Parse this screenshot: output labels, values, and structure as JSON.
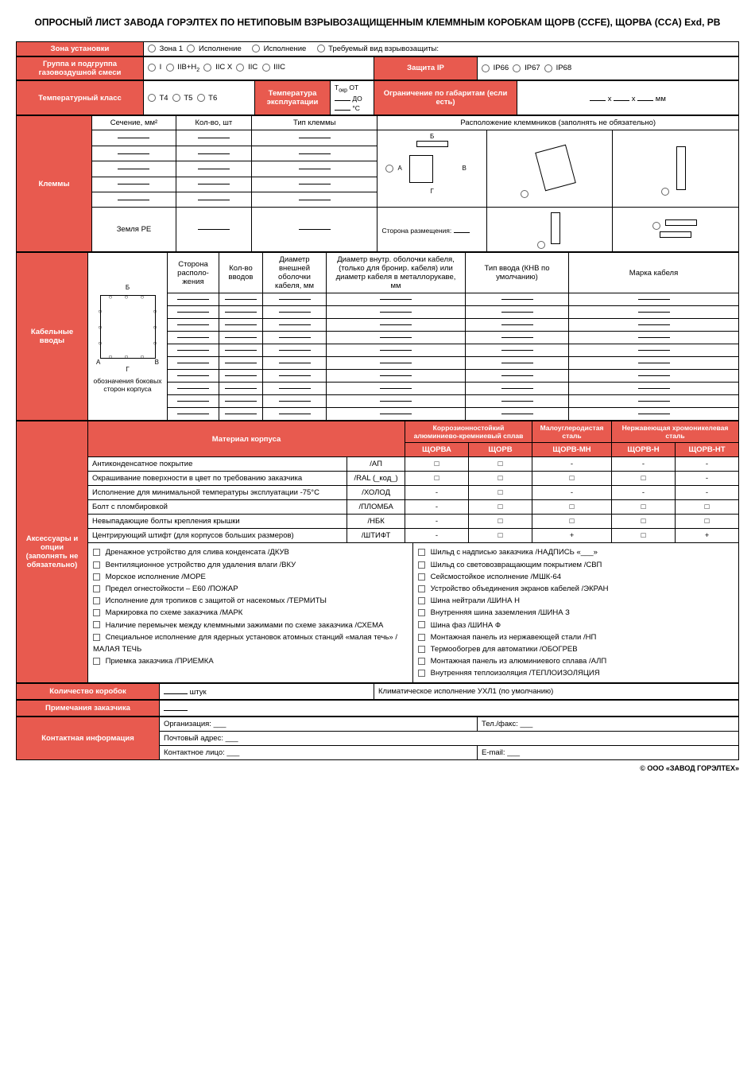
{
  "colors": {
    "header_bg": "#e85a4f",
    "header_fg": "#ffffff",
    "border": "#000000"
  },
  "title": "ОПРОСНЫЙ ЛИСТ ЗАВОДА ГОРЭЛТЕХ ПО НЕТИПОВЫМ ВЗРЫВОЗАЩИЩЕННЫМ КЛЕММНЫМ КОРОБКАМ ЩОРВ (CCFE), ЩОРВА (CCA) Exd, РВ",
  "row1": {
    "zone_label": "Зона установки",
    "opts": [
      "Зона 1",
      "Исполнение",
      "Исполнение",
      "Требуемый вид взрывозащиты:"
    ]
  },
  "row2": {
    "group_label": "Группа и подгруппа газовоздушной смеси",
    "opts": [
      "I",
      "IIB+H₂",
      "IIC X",
      "IIC",
      "IIIC"
    ],
    "ip_label": "Защита IP",
    "ip_opts": [
      "IP66",
      "IP67",
      "IP68"
    ]
  },
  "row3": {
    "temp_class_label": "Температурный класс",
    "temp_opts": [
      "T4",
      "T5",
      "T6"
    ],
    "temp_oper_label": "Температура эксплуатации",
    "temp_range": "Tокр ОТ ___ ДО ___ °C",
    "dim_label": "Ограничение по габаритам (если есть)",
    "dim_val": "___ x ___ x ___ мм"
  },
  "terminals": {
    "label": "Клеммы",
    "cols": [
      "Сечение, мм²",
      "Кол-во, шт",
      "Тип клеммы"
    ],
    "earth_label": "Земля PE",
    "layout_label": "Расположение клеммников (заполнять не обязательно)",
    "side_label": "Сторона размещения: ___",
    "diag_labels": {
      "a": "А",
      "b": "Б",
      "v": "В",
      "g": "Г"
    }
  },
  "cable": {
    "label": "Кабельные вводы",
    "cols": [
      "Сторона располо-жения",
      "Кол-во вводов",
      "Диаметр внешней оболочки кабеля, мм",
      "Диаметр внутр. оболочки кабеля, (только для бронир. кабеля) или диаметр кабеля в металлорукаве, мм",
      "Тип ввода (КНВ по умолчанию)",
      "Марка кабеля"
    ],
    "diag_note": "обозначения боковых сторон корпуса"
  },
  "material": {
    "header": "Материал корпуса",
    "groups": [
      {
        "name": "Коррозионностойкий алюминиево-кремниевый сплав",
        "models": [
          "ЩОРВА",
          "ЩОРВ"
        ]
      },
      {
        "name": "Малоуглеродистая сталь",
        "models": [
          "ЩОРВ-МН"
        ]
      },
      {
        "name": "Нержавеющая хромоникелевая сталь",
        "models": [
          "ЩОРВ-Н",
          "ЩОРВ-НТ"
        ]
      }
    ]
  },
  "accessories": {
    "label": "Аксессуары и опции (заполнять не обязательно)",
    "rows": [
      {
        "name": "Антиконденсатное покрытие",
        "code": "/АП",
        "cells": [
          "□",
          "□",
          "-",
          "-",
          "-"
        ]
      },
      {
        "name": "Окрашивание поверхности в цвет по требованию заказчика",
        "code": "/RAL (_код_)",
        "cells": [
          "□",
          "□",
          "□",
          "□",
          "-"
        ]
      },
      {
        "name": "Исполнение для минимальной температуры эксплуатации -75°С",
        "code": "/ХОЛОД",
        "cells": [
          "-",
          "□",
          "-",
          "-",
          "-"
        ]
      },
      {
        "name": "Болт с пломбировкой",
        "code": "/ПЛОМБА",
        "cells": [
          "-",
          "□",
          "□",
          "□",
          "□"
        ]
      },
      {
        "name": "Невыпадающие болты крепления крышки",
        "code": "/НБК",
        "cells": [
          "-",
          "□",
          "□",
          "□",
          "□"
        ]
      },
      {
        "name": "Центрирующий штифт (для корпусов больших размеров)",
        "code": "/ШТИФТ",
        "cells": [
          "-",
          "□",
          "+",
          "□",
          "+"
        ]
      }
    ],
    "options_left": [
      "Дренажное устройство для слива конденсата /ДКУВ",
      "Вентиляционное устройство для удаления влаги /ВКУ",
      "Морское исполнение /МОРЕ",
      "Предел огнестойкости – E60 /ПОЖАР",
      "Исполнение для тропиков с защитой от насекомых /ТЕРМИТЫ",
      "Маркировка по схеме заказчика /МАРК",
      "Наличие перемычек между клеммными зажимами по схеме заказчика /СХЕМА",
      "Специальное исполнение для ядерных установок атомных станций «малая течь» /МАЛАЯ ТЕЧЬ",
      "Приемка заказчика /ПРИЕМКА"
    ],
    "options_right": [
      "Шильд с надписью заказчика /НАДПИСЬ «___»",
      "Шильд со световозвращающим покрытием /СВП",
      "Сейсмостойкое исполнение /МШК-64",
      "Устройство объединения экранов кабелей /ЭКРАН",
      "Шина нейтрали /ШИНА Н",
      "Внутренняя шина заземления /ШИНА З",
      "Шина фаз /ШИНА Ф",
      "Монтажная панель из нержавеющей стали /НП",
      "Термообогрев для автоматики /ОБОГРЕВ",
      "Монтажная панель из алюминиевого сплава /АЛП",
      "Внутренняя теплоизоляция /ТЕПЛОИЗОЛЯЦИЯ"
    ]
  },
  "qty": {
    "label": "Количество коробок",
    "unit": "штук",
    "climate": "Климатическое исполнение УХЛ1 (по умолчанию)"
  },
  "notes_label": "Примечания заказчика",
  "contact": {
    "label": "Контактная информация",
    "org": "Организация: ___",
    "tel": "Тел./факс: ___",
    "addr": "Почтовый адрес: ___",
    "person": "Контактное лицо: ___",
    "email": "E-mail: ___"
  },
  "footer": "© ООО «ЗАВОД ГОРЭЛТЕХ»"
}
